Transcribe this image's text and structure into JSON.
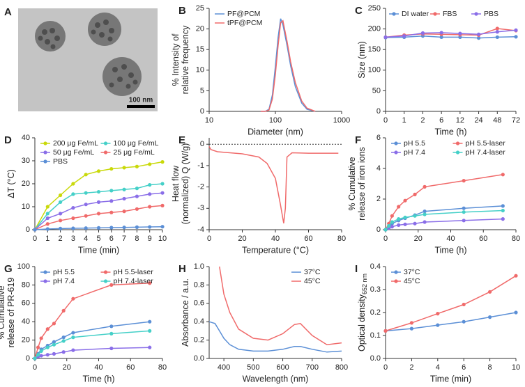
{
  "image_panel": {
    "label": "A",
    "scale_bar_label": "100 nm"
  },
  "chart_data": [
    {
      "type": "line",
      "panel_label": "B",
      "xscale": "log",
      "markers": false,
      "x_label": "Diameter (nm)",
      "y_label": [
        "% Intensity of",
        "relative frequency"
      ],
      "x": [
        60,
        70,
        80,
        90,
        100,
        110,
        120,
        130,
        150,
        170,
        200,
        250,
        300,
        400
      ],
      "series": [
        {
          "name": "PF@PCM",
          "color": "#5b8fd6",
          "values": [
            0,
            0,
            0.5,
            4,
            11,
            18,
            22.5,
            21,
            16,
            11,
            6,
            2,
            0.5,
            0
          ]
        },
        {
          "name": "tPF@PCM",
          "color": "#f06a6a",
          "values": [
            0,
            0,
            0.3,
            3,
            9,
            16,
            21.5,
            22,
            17,
            12,
            7,
            2.5,
            0.8,
            0
          ]
        }
      ],
      "xlim": [
        10,
        1000
      ],
      "xticks": [
        10,
        100,
        1000
      ],
      "ylim": [
        0,
        25
      ],
      "yticks": [
        0,
        5,
        10,
        15,
        20,
        25
      ],
      "legend": {
        "position": "upper left",
        "columns": 1
      }
    },
    {
      "type": "line",
      "panel_label": "C",
      "markers": true,
      "x_label": "Time (h)",
      "y_label": [
        "Size (nm)"
      ],
      "categories": [
        "0",
        "1",
        "2",
        "6",
        "12",
        "24",
        "48",
        "72"
      ],
      "series": [
        {
          "name": "DI water",
          "color": "#5b8fd6",
          "values": [
            179,
            180,
            183,
            180,
            180,
            178,
            180,
            181
          ]
        },
        {
          "name": "FBS",
          "color": "#f06a6a",
          "values": [
            180,
            185,
            188,
            187,
            186,
            185,
            201,
            196
          ]
        },
        {
          "name": "PBS",
          "color": "#8a6ee8",
          "values": [
            180,
            183,
            190,
            191,
            189,
            187,
            193,
            197
          ]
        }
      ],
      "ylim": [
        0,
        250
      ],
      "yticks": [
        0,
        50,
        100,
        150,
        200,
        250
      ],
      "legend": {
        "position": "top",
        "columns": 3
      }
    },
    {
      "type": "line",
      "panel_label": "D",
      "markers": true,
      "x_label": "Time (min)",
      "y_label": [
        "ΔT (°C)"
      ],
      "x": [
        0,
        1,
        2,
        3,
        4,
        5,
        6,
        7,
        8,
        9,
        10
      ],
      "series": [
        {
          "name": "200 μg Fe/mL",
          "color": "#c9d90a",
          "values": [
            0,
            10,
            15,
            20,
            24,
            25.5,
            26.5,
            27,
            27.5,
            28.5,
            29.5
          ]
        },
        {
          "name": "100 μg Fe/mL",
          "color": "#45d0c8",
          "values": [
            0,
            7,
            12,
            15.5,
            16,
            16.5,
            17,
            17.5,
            18,
            19.5,
            20
          ]
        },
        {
          "name": "50 μg Fe/mL",
          "color": "#8a6ee8",
          "values": [
            0,
            5,
            7,
            9.5,
            11,
            12,
            12.5,
            13.5,
            14.5,
            15.5,
            16
          ]
        },
        {
          "name": "25 μg Fe/mL",
          "color": "#f06a6a",
          "values": [
            0,
            2.5,
            4,
            5,
            6,
            7,
            7.5,
            8,
            9,
            10,
            10.5
          ]
        },
        {
          "name": "PBS",
          "color": "#5b8fd6",
          "values": [
            0,
            0.3,
            0.5,
            0.6,
            0.7,
            0.8,
            0.9,
            1,
            1.1,
            1.2,
            1.3
          ]
        }
      ],
      "xlim": [
        0,
        10
      ],
      "xticks": [
        0,
        1,
        2,
        3,
        4,
        5,
        6,
        7,
        8,
        9,
        10
      ],
      "ylim": [
        0,
        40
      ],
      "yticks": [
        0,
        10,
        20,
        30,
        40
      ],
      "legend": {
        "position": "upper left",
        "columns": 2
      }
    },
    {
      "type": "line",
      "panel_label": "E",
      "markers": false,
      "zero_line": true,
      "x_label": "Temperature (°C)",
      "y_label": [
        "Heat flow",
        "(normalized) Q (W/g)"
      ],
      "x": [
        0,
        1,
        5,
        20,
        30,
        35,
        40,
        43,
        45,
        46,
        47,
        50,
        60,
        78
      ],
      "values": [
        -0.1,
        -0.25,
        -0.35,
        -0.45,
        -0.6,
        -0.9,
        -1.6,
        -2.8,
        -3.7,
        -3.0,
        -0.6,
        -0.4,
        -0.42,
        -0.42
      ],
      "color": "#f06a6a",
      "xlim": [
        0,
        80
      ],
      "xticks": [
        0,
        20,
        40,
        60,
        80
      ],
      "ylim": [
        -4,
        0.3
      ],
      "yticks": [
        0,
        -1,
        -2,
        -3,
        -4
      ]
    },
    {
      "type": "line",
      "panel_label": "F",
      "markers": true,
      "x_label": "Time (h)",
      "y_label": [
        "% Cumulative",
        "release of iron ions"
      ],
      "x": [
        0,
        2,
        4,
        8,
        12,
        18,
        24,
        48,
        72
      ],
      "series": [
        {
          "name": "pH 5.5",
          "color": "#5b8fd6",
          "values": [
            0,
            0.2,
            0.4,
            0.6,
            0.75,
            0.95,
            1.2,
            1.4,
            1.55
          ]
        },
        {
          "name": "pH 5.5-laser",
          "color": "#f06a6a",
          "values": [
            0,
            0.4,
            0.9,
            1.5,
            1.9,
            2.3,
            2.8,
            3.2,
            3.6
          ]
        },
        {
          "name": "pH 7.4",
          "color": "#8a6ee8",
          "values": [
            0,
            0.1,
            0.2,
            0.3,
            0.35,
            0.4,
            0.5,
            0.6,
            0.7
          ]
        },
        {
          "name": "pH 7.4-laser",
          "color": "#45d0c8",
          "values": [
            0,
            0.25,
            0.5,
            0.7,
            0.8,
            0.9,
            1.0,
            1.15,
            1.25
          ]
        }
      ],
      "xlim": [
        0,
        80
      ],
      "xticks": [
        0,
        20,
        40,
        60,
        80
      ],
      "ylim": [
        0,
        6
      ],
      "yticks": [
        0,
        2,
        4,
        6
      ],
      "legend": {
        "position": "upper left",
        "columns": 2
      }
    },
    {
      "type": "line",
      "panel_label": "G",
      "markers": true,
      "x_label": "Time (h)",
      "y_label": [
        "% Cumulative",
        "release of PR-619"
      ],
      "x": [
        0,
        2,
        4,
        8,
        12,
        18,
        24,
        48,
        72
      ],
      "series": [
        {
          "name": "pH 5.5",
          "color": "#5b8fd6",
          "values": [
            0,
            5,
            10,
            14,
            18,
            23,
            28,
            35,
            40
          ]
        },
        {
          "name": "pH 5.5-laser",
          "color": "#f06a6a",
          "values": [
            0,
            12,
            22,
            32,
            38,
            52,
            65,
            80,
            82
          ]
        },
        {
          "name": "pH 7.4",
          "color": "#8a6ee8",
          "values": [
            0,
            2,
            3,
            4,
            5,
            7,
            9,
            11,
            12
          ]
        },
        {
          "name": "pH 7.4-laser",
          "color": "#45d0c8",
          "values": [
            0,
            4,
            8,
            12,
            15,
            19,
            23,
            27,
            30
          ]
        }
      ],
      "xlim": [
        0,
        80
      ],
      "xticks": [
        0,
        20,
        40,
        60,
        80
      ],
      "ylim": [
        0,
        100
      ],
      "yticks": [
        0,
        20,
        40,
        60,
        80,
        100
      ],
      "legend": {
        "position": "upper left",
        "columns": 2
      }
    },
    {
      "type": "line",
      "panel_label": "H",
      "markers": false,
      "x_label": "Wavelength (nm)",
      "y_label": [
        "Absorbance / a.u."
      ],
      "x": [
        350,
        370,
        385,
        400,
        420,
        450,
        500,
        550,
        600,
        640,
        660,
        700,
        750,
        800
      ],
      "series": [
        {
          "name": "37°C",
          "color": "#5b8fd6",
          "values": [
            0.4,
            0.38,
            0.3,
            0.22,
            0.15,
            0.1,
            0.08,
            0.08,
            0.1,
            0.13,
            0.13,
            0.1,
            0.07,
            0.08
          ]
        },
        {
          "name": "45°C",
          "color": "#f06a6a",
          "values": [
            null,
            null,
            1.0,
            0.7,
            0.5,
            0.32,
            0.22,
            0.2,
            0.27,
            0.37,
            0.38,
            0.25,
            0.15,
            0.17
          ]
        }
      ],
      "xlim": [
        350,
        800
      ],
      "xticks": [
        400,
        500,
        600,
        700,
        800
      ],
      "ylim": [
        0,
        1
      ],
      "yticks": [
        {
          "value": 0,
          "label": "0.0"
        },
        0.2,
        0.4,
        0.6,
        0.8,
        {
          "value": 1,
          "label": "1.0"
        }
      ],
      "legend": {
        "position": "upper right",
        "columns": 1
      }
    },
    {
      "type": "line",
      "panel_label": "I",
      "markers": true,
      "x_label": "Time (min)",
      "y_label": [
        "Optical density"
      ],
      "y_label_sub": "652 nm",
      "x": [
        0,
        2,
        4,
        6,
        8,
        10
      ],
      "series": [
        {
          "name": "37°C",
          "color": "#5b8fd6",
          "values": [
            0.12,
            0.13,
            0.145,
            0.16,
            0.18,
            0.2
          ]
        },
        {
          "name": "45°C",
          "color": "#f06a6a",
          "values": [
            0.12,
            0.155,
            0.195,
            0.235,
            0.29,
            0.36
          ]
        }
      ],
      "xlim": [
        0,
        10
      ],
      "xticks": [
        0,
        2,
        4,
        6,
        8,
        10
      ],
      "ylim": [
        0,
        0.4
      ],
      "yticks": [
        {
          "value": 0,
          "label": "0.0"
        },
        0.1,
        0.2,
        0.3,
        0.4
      ],
      "legend": {
        "position": "upper left",
        "columns": 1
      }
    }
  ]
}
